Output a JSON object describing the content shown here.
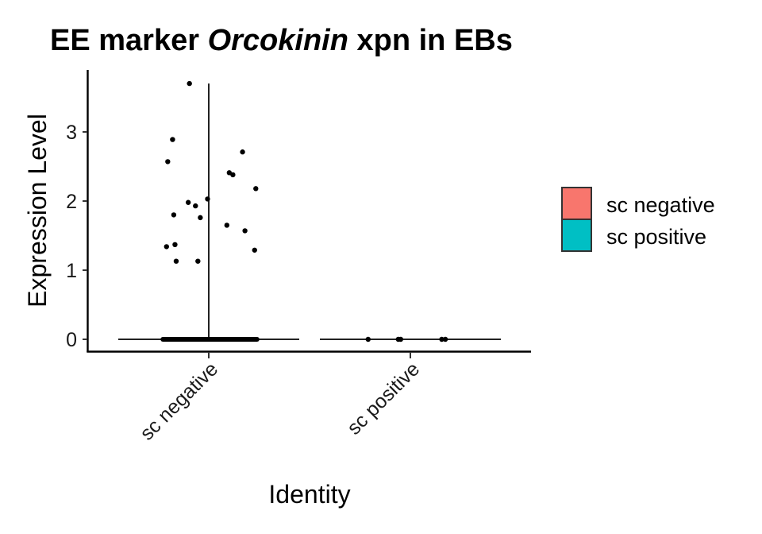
{
  "chart_data": {
    "type": "violin",
    "title_parts": [
      {
        "text": "EE marker ",
        "italic": false
      },
      {
        "text": "Orcokinin",
        "italic": true
      },
      {
        "text": " xpn in EBs",
        "italic": false
      }
    ],
    "xlabel": "Identity",
    "ylabel": "Expression Level",
    "categories": [
      "sc negative",
      "sc positive"
    ],
    "y_ticks": [
      0,
      1,
      2,
      3
    ],
    "ylim": [
      -0.18,
      3.85
    ],
    "grid": false,
    "legend": {
      "position": "right",
      "entries": [
        {
          "label": "sc negative",
          "color": "#F8766D"
        },
        {
          "label": "sc positive",
          "color": "#00BFC4"
        }
      ]
    },
    "violins": [
      {
        "category": "sc negative",
        "max": 3.7
      },
      {
        "category": "sc positive",
        "max": 0
      }
    ],
    "points": [
      {
        "category": "sc negative",
        "jitter": -0.35,
        "y": 1.34
      },
      {
        "category": "sc negative",
        "jitter": -0.34,
        "y": 2.57
      },
      {
        "category": "sc negative",
        "jitter": -0.3,
        "y": 2.89
      },
      {
        "category": "sc negative",
        "jitter": -0.29,
        "y": 1.8
      },
      {
        "category": "sc negative",
        "jitter": -0.28,
        "y": 1.37
      },
      {
        "category": "sc negative",
        "jitter": -0.27,
        "y": 1.13
      },
      {
        "category": "sc negative",
        "jitter": -0.17,
        "y": 1.98
      },
      {
        "category": "sc negative",
        "jitter": -0.16,
        "y": 3.7
      },
      {
        "category": "sc negative",
        "jitter": -0.11,
        "y": 1.93
      },
      {
        "category": "sc negative",
        "jitter": -0.09,
        "y": 1.13
      },
      {
        "category": "sc negative",
        "jitter": -0.07,
        "y": 1.76
      },
      {
        "category": "sc negative",
        "jitter": -0.01,
        "y": 2.03
      },
      {
        "category": "sc negative",
        "jitter": 0.15,
        "y": 1.65
      },
      {
        "category": "sc negative",
        "jitter": 0.17,
        "y": 2.41
      },
      {
        "category": "sc negative",
        "jitter": 0.2,
        "y": 2.38
      },
      {
        "category": "sc negative",
        "jitter": 0.28,
        "y": 2.71
      },
      {
        "category": "sc negative",
        "jitter": 0.3,
        "y": 1.57
      },
      {
        "category": "sc negative",
        "jitter": 0.38,
        "y": 1.29
      },
      {
        "category": "sc negative",
        "jitter": 0.39,
        "y": 2.18
      },
      {
        "category": "sc positive",
        "jitter": -0.35,
        "y": 0
      },
      {
        "category": "sc positive",
        "jitter": -0.1,
        "y": 0
      },
      {
        "category": "sc positive",
        "jitter": -0.08,
        "y": 0
      },
      {
        "category": "sc positive",
        "jitter": 0.26,
        "y": 0
      },
      {
        "category": "sc positive",
        "jitter": 0.29,
        "y": 0
      }
    ],
    "zero_cluster": [
      {
        "category": "sc negative",
        "jitter_range": [
          -0.38,
          0.4
        ],
        "y": 0
      }
    ]
  }
}
